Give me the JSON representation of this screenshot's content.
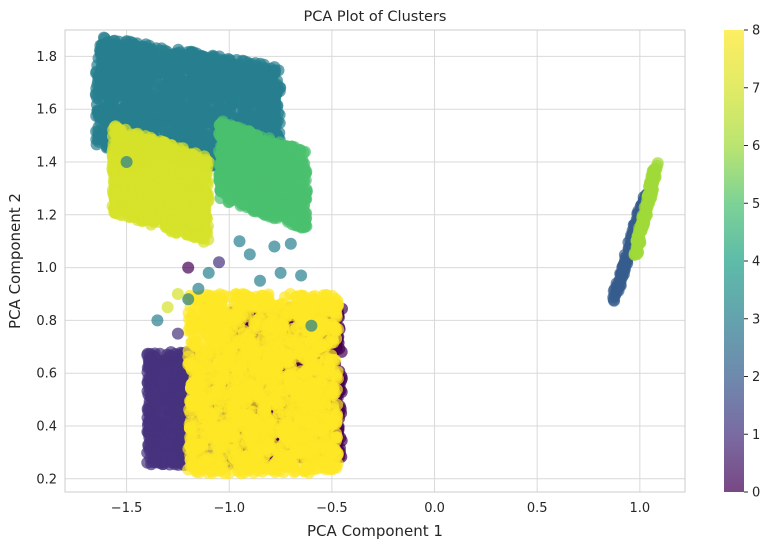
{
  "chart_data": {
    "type": "scatter",
    "title": "PCA Plot of Clusters",
    "xlabel": "PCA Component 1",
    "ylabel": "PCA Component 2",
    "xlim": [
      -1.8,
      1.22
    ],
    "ylim": [
      0.15,
      1.9
    ],
    "xticks": [
      "-1.5",
      "-1.0",
      "-0.5",
      "0.0",
      "0.5",
      "1.0"
    ],
    "xtick_values": [
      -1.5,
      -1.0,
      -0.5,
      0.0,
      0.5,
      1.0
    ],
    "yticks": [
      "0.2",
      "0.4",
      "0.6",
      "0.8",
      "1.0",
      "1.2",
      "1.4",
      "1.6",
      "1.8"
    ],
    "ytick_values": [
      0.2,
      0.4,
      0.6,
      0.8,
      1.0,
      1.2,
      1.4,
      1.6,
      1.8
    ],
    "grid": true,
    "colormap": "viridis",
    "marker_alpha": 0.7,
    "colorbar": {
      "range": [
        0,
        8
      ],
      "ticks": [
        "0",
        "1",
        "2",
        "3",
        "4",
        "5",
        "6",
        "7",
        "8"
      ],
      "tick_values": [
        0,
        1,
        2,
        3,
        4,
        5,
        6,
        7,
        8
      ]
    },
    "clusters": [
      {
        "label": 0,
        "x_range": [
          -1.0,
          -0.45
        ],
        "y_range": [
          0.28,
          0.85
        ],
        "approx_points": 900
      },
      {
        "label": 1,
        "x_range": [
          -1.4,
          -0.75
        ],
        "y_range": [
          0.25,
          0.68
        ],
        "approx_points": 1400
      },
      {
        "label": 2,
        "x_range": [
          0.87,
          1.03
        ],
        "y_range": [
          0.87,
          1.28
        ],
        "approx_points": 120
      },
      {
        "label": 3,
        "x_range": [
          -1.65,
          -0.75
        ],
        "y_range": [
          1.4,
          1.82
        ],
        "approx_points": 1800
      },
      {
        "label": 5,
        "x_range": [
          -1.05,
          -0.62
        ],
        "y_range": [
          1.2,
          1.5
        ],
        "approx_points": 900
      },
      {
        "label": 6,
        "x_range": [
          0.98,
          1.08
        ],
        "y_range": [
          1.05,
          1.39
        ],
        "approx_points": 120
      },
      {
        "label": 7,
        "x_range": [
          -1.57,
          -1.1
        ],
        "y_range": [
          1.15,
          1.48
        ],
        "approx_points": 900
      },
      {
        "label": 8,
        "x_range": [
          -1.2,
          -0.47
        ],
        "y_range": [
          0.22,
          0.9
        ],
        "approx_points": 1600
      }
    ]
  }
}
